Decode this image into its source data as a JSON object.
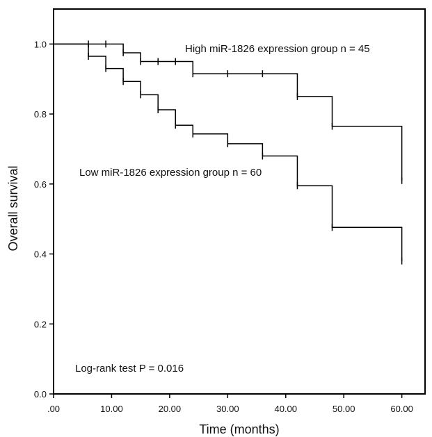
{
  "chart_data": {
    "type": "line",
    "title": "",
    "xlabel": "Time (months)",
    "ylabel": "Overall survival",
    "xlim": [
      0,
      64
    ],
    "ylim": [
      0,
      1.1
    ],
    "x_ticks": [
      0,
      10,
      20,
      30,
      40,
      50,
      60
    ],
    "x_tick_labels": [
      ".00",
      "10.00",
      "20.00",
      "30.00",
      "40.00",
      "50.00",
      "60.00"
    ],
    "y_ticks": [
      0,
      0.2,
      0.4,
      0.6,
      0.8,
      1.0
    ],
    "y_tick_labels": [
      "0.0",
      "0.2",
      "0.4",
      "0.6",
      "0.8",
      "1.0"
    ],
    "grid": false,
    "series": [
      {
        "name": "High miR-1826 expression group n = 45",
        "color": "#000000",
        "steps": [
          [
            0,
            1.0
          ],
          [
            12,
            0.975
          ],
          [
            15,
            0.95
          ],
          [
            24,
            0.915
          ],
          [
            42,
            0.85
          ],
          [
            48,
            0.765
          ],
          [
            60,
            0.61
          ]
        ],
        "censored": [
          [
            6,
            1.0
          ],
          [
            9,
            1.0
          ],
          [
            12,
            0.975
          ],
          [
            15,
            0.95
          ],
          [
            18,
            0.95
          ],
          [
            21,
            0.95
          ],
          [
            24,
            0.915
          ],
          [
            30,
            0.915
          ],
          [
            36,
            0.915
          ],
          [
            42,
            0.85
          ],
          [
            48,
            0.765
          ],
          [
            60,
            0.61
          ]
        ]
      },
      {
        "name": "Low miR-1826 expression group n = 60",
        "color": "#000000",
        "steps": [
          [
            0,
            1.0
          ],
          [
            6,
            0.965
          ],
          [
            9,
            0.93
          ],
          [
            12,
            0.893
          ],
          [
            15,
            0.855
          ],
          [
            18,
            0.812
          ],
          [
            21,
            0.768
          ],
          [
            24,
            0.743
          ],
          [
            30,
            0.715
          ],
          [
            36,
            0.68
          ],
          [
            42,
            0.595
          ],
          [
            48,
            0.476
          ],
          [
            60,
            0.38
          ]
        ],
        "censored": [
          [
            6,
            0.965
          ],
          [
            9,
            0.93
          ],
          [
            12,
            0.893
          ],
          [
            15,
            0.855
          ],
          [
            18,
            0.812
          ],
          [
            21,
            0.768
          ],
          [
            24,
            0.743
          ],
          [
            30,
            0.715
          ],
          [
            36,
            0.68
          ],
          [
            42,
            0.595
          ],
          [
            48,
            0.476
          ],
          [
            60,
            0.38
          ]
        ]
      }
    ],
    "annotations": [
      "High miR-1826 expression group n = 45",
      "Low miR-1826 expression group n = 60",
      "Log-rank test P = 0.016"
    ]
  }
}
